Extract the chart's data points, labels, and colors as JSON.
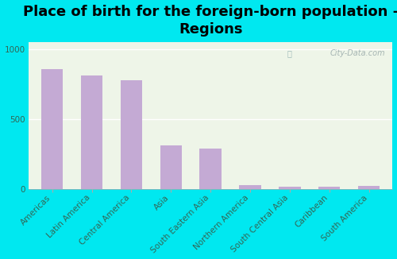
{
  "title": "Place of birth for the foreign-born population -\nRegions",
  "categories": [
    "Americas",
    "Latin America",
    "Central America",
    "Asia",
    "South Eastern Asia",
    "Northern America",
    "South Central Asia",
    "Caribbean",
    "South America"
  ],
  "values": [
    855,
    810,
    775,
    315,
    290,
    28,
    18,
    18,
    22
  ],
  "bar_color": "#c4aad4",
  "background_outer": "#00e8f0",
  "background_inner": "#eef5e8",
  "grid_color": "#d8e8c8",
  "ylim": [
    0,
    1050
  ],
  "yticks": [
    0,
    500,
    1000
  ],
  "watermark": "City-Data.com",
  "title_fontsize": 13,
  "tick_fontsize": 7.5,
  "ytick_color": "#00e8f0",
  "xtick_color": "#336655"
}
